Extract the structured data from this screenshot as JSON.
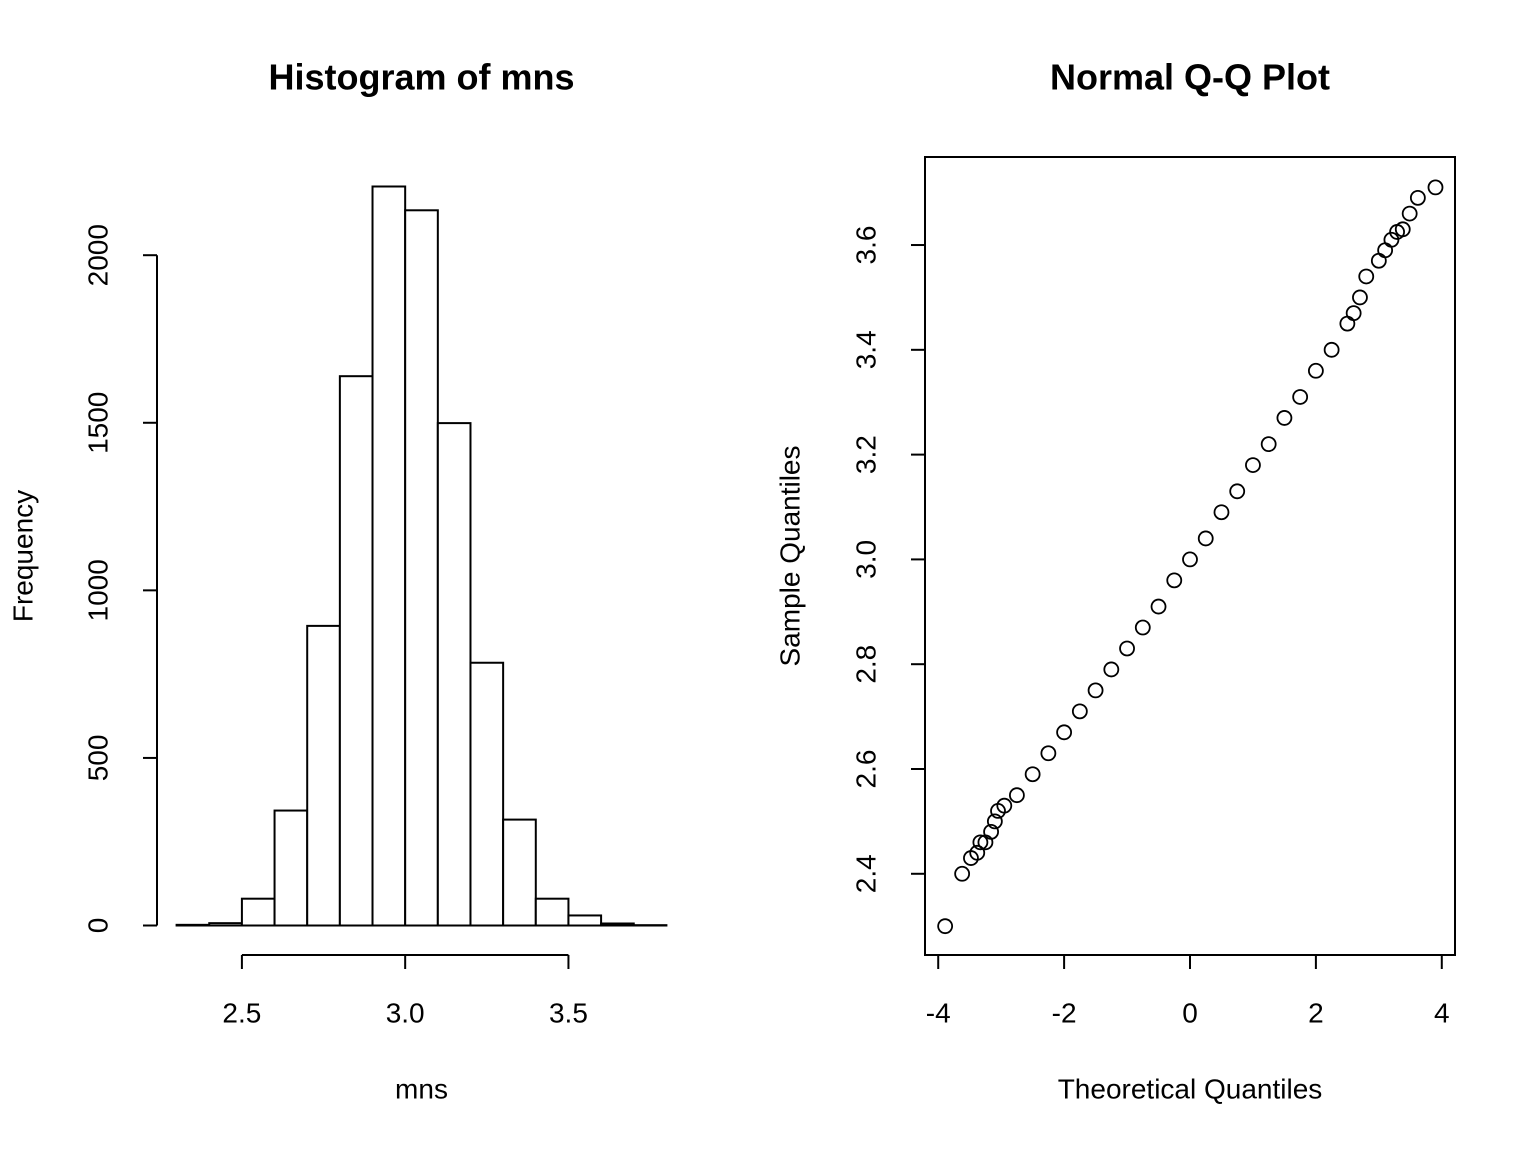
{
  "chart_data": [
    {
      "type": "histogram",
      "title": "Histogram of mns",
      "xlabel": "mns",
      "ylabel": "Frequency",
      "bins": [
        2.3,
        2.4,
        2.5,
        2.6,
        2.7,
        2.8,
        2.9,
        3.0,
        3.1,
        3.2,
        3.3,
        3.4,
        3.5,
        3.6,
        3.7,
        3.8
      ],
      "values": [
        2,
        7,
        80,
        343,
        894,
        1639,
        2205,
        2134,
        1499,
        784,
        316,
        80,
        30,
        6,
        1
      ],
      "color": "#ffffff",
      "edgecolor": "#000000",
      "xlim": [
        2.24,
        3.86
      ],
      "ylim": [
        -88,
        2293
      ],
      "xticks": [
        2.5,
        {
          "value": 3,
          "label": "3.0"
        },
        3.5
      ],
      "yticks": [
        0,
        500,
        1000,
        1500,
        2000
      ],
      "frame": false
    },
    {
      "type": "scatter",
      "title": "Normal Q-Q Plot",
      "xlabel": "Theoretical Quantiles",
      "ylabel": "Sample Quantiles",
      "x": [
        -3.89,
        -3.62,
        -3.48,
        -3.38,
        -3.33,
        -3.25,
        -3.16,
        -3.1,
        -3.05,
        -2.95,
        -2.75,
        -2.5,
        -2.25,
        -2,
        -1.75,
        -1.5,
        -1.25,
        -1,
        -0.75,
        -0.5,
        -0.25,
        0,
        0.25,
        0.5,
        0.75,
        1,
        1.25,
        1.5,
        1.75,
        2,
        2.25,
        2.5,
        2.6,
        2.7,
        2.8,
        3.0,
        3.1,
        3.2,
        3.29,
        3.38,
        3.49,
        3.62,
        3.9
      ],
      "values": [
        2.3,
        2.4,
        2.43,
        2.44,
        2.46,
        2.46,
        2.48,
        2.5,
        2.52,
        2.53,
        2.55,
        2.59,
        2.63,
        2.67,
        2.71,
        2.75,
        2.79,
        2.83,
        2.87,
        2.91,
        2.96,
        3.0,
        3.04,
        3.09,
        3.13,
        3.18,
        3.22,
        3.27,
        3.31,
        3.36,
        3.4,
        3.45,
        3.47,
        3.5,
        3.54,
        3.57,
        3.59,
        3.61,
        3.625,
        3.63,
        3.66,
        3.69,
        3.71
      ],
      "color": "#000000",
      "xlim": [
        -4.21,
        4.21
      ],
      "ylim": [
        2.245,
        3.768
      ],
      "xticks": [
        -4,
        -2,
        0,
        2,
        4
      ],
      "yticks": [
        2.4,
        2.6,
        2.8,
        {
          "value": 3,
          "label": "3.0"
        },
        3.2,
        3.4,
        3.6
      ],
      "frame": true
    }
  ]
}
